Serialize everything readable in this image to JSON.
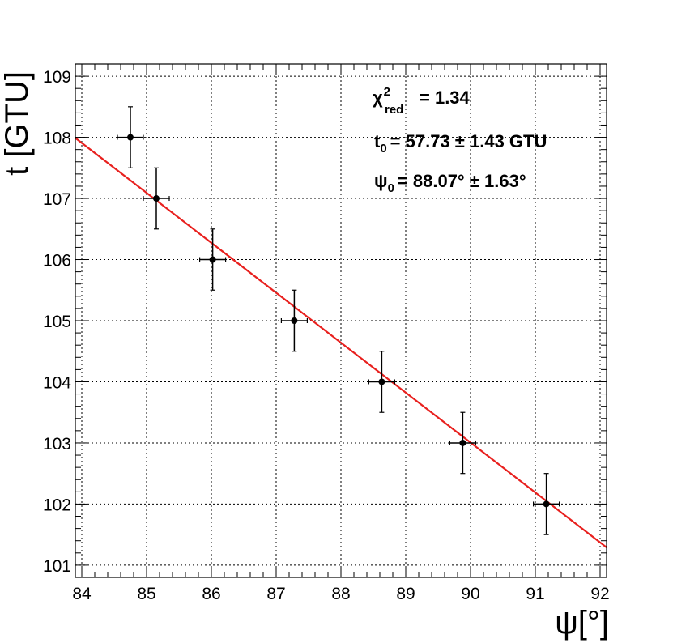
{
  "chart_data": {
    "type": "scatter",
    "xlabel": "ψ[°]",
    "ylabel": "t [GTU]",
    "xlim": [
      83.9,
      92.1
    ],
    "ylim": [
      100.8,
      109.2
    ],
    "x_ticks": [
      84,
      85,
      86,
      87,
      88,
      89,
      90,
      91,
      92
    ],
    "y_ticks": [
      101,
      102,
      103,
      104,
      105,
      106,
      107,
      108,
      109
    ],
    "grid": true,
    "series": [
      {
        "x": [
          84.75,
          85.15,
          86.02,
          87.28,
          88.63,
          89.88,
          91.17
        ],
        "y": [
          108,
          107,
          106,
          105,
          104,
          103,
          102
        ],
        "x_err": [
          0.2,
          0.2,
          0.2,
          0.2,
          0.2,
          0.2,
          0.2
        ],
        "y_err": [
          0.5,
          0.5,
          0.5,
          0.5,
          0.5,
          0.5,
          0.5
        ],
        "color": "#000000"
      }
    ],
    "fit_line": {
      "x": [
        83.9,
        92.1
      ],
      "y": [
        107.99,
        101.29
      ],
      "color": "#e8201e"
    },
    "annotations": {
      "chi2_symbol": "χ",
      "chi2_sup": "2",
      "chi2_sub": "red",
      "chi2_value": "= 1.34",
      "t0_symbol": "t",
      "t0_sub": "0",
      "t0_value": "= 57.73 ± 1.43 GTU",
      "psi0_symbol": "ψ",
      "psi0_sub": "0",
      "psi0_value": "= 88.07° ± 1.63°"
    }
  }
}
